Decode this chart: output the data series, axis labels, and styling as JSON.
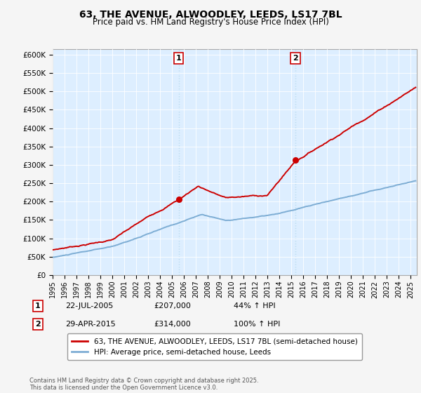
{
  "title": "63, THE AVENUE, ALWOODLEY, LEEDS, LS17 7BL",
  "subtitle": "Price paid vs. HM Land Registry's House Price Index (HPI)",
  "ylabel_ticks": [
    "£0",
    "£50K",
    "£100K",
    "£150K",
    "£200K",
    "£250K",
    "£300K",
    "£350K",
    "£400K",
    "£450K",
    "£500K",
    "£550K",
    "£600K"
  ],
  "ytick_values": [
    0,
    50000,
    100000,
    150000,
    200000,
    250000,
    300000,
    350000,
    400000,
    450000,
    500000,
    550000,
    600000
  ],
  "ylim": [
    0,
    615000
  ],
  "xlim_start": 1995.0,
  "xlim_end": 2025.5,
  "sale1_date": 2005.55,
  "sale1_price": 207000,
  "sale2_date": 2015.33,
  "sale2_price": 314000,
  "property_line_color": "#cc0000",
  "hpi_line_color": "#7dadd4",
  "vline_color": "#bbddf0",
  "background_color": "#ddeeff",
  "fig_bg_color": "#f5f5f5",
  "legend_label1": "63, THE AVENUE, ALWOODLEY, LEEDS, LS17 7BL (semi-detached house)",
  "legend_label2": "HPI: Average price, semi-detached house, Leeds",
  "table_row1": [
    "1",
    "22-JUL-2005",
    "£207,000",
    "44% ↑ HPI"
  ],
  "table_row2": [
    "2",
    "29-APR-2015",
    "£314,000",
    "100% ↑ HPI"
  ],
  "footer": "Contains HM Land Registry data © Crown copyright and database right 2025.\nThis data is licensed under the Open Government Licence v3.0.",
  "xtick_years": [
    1995,
    1996,
    1997,
    1998,
    1999,
    2000,
    2001,
    2002,
    2003,
    2004,
    2005,
    2006,
    2007,
    2008,
    2009,
    2010,
    2011,
    2012,
    2013,
    2014,
    2015,
    2016,
    2017,
    2018,
    2019,
    2020,
    2021,
    2022,
    2023,
    2024,
    2025
  ]
}
